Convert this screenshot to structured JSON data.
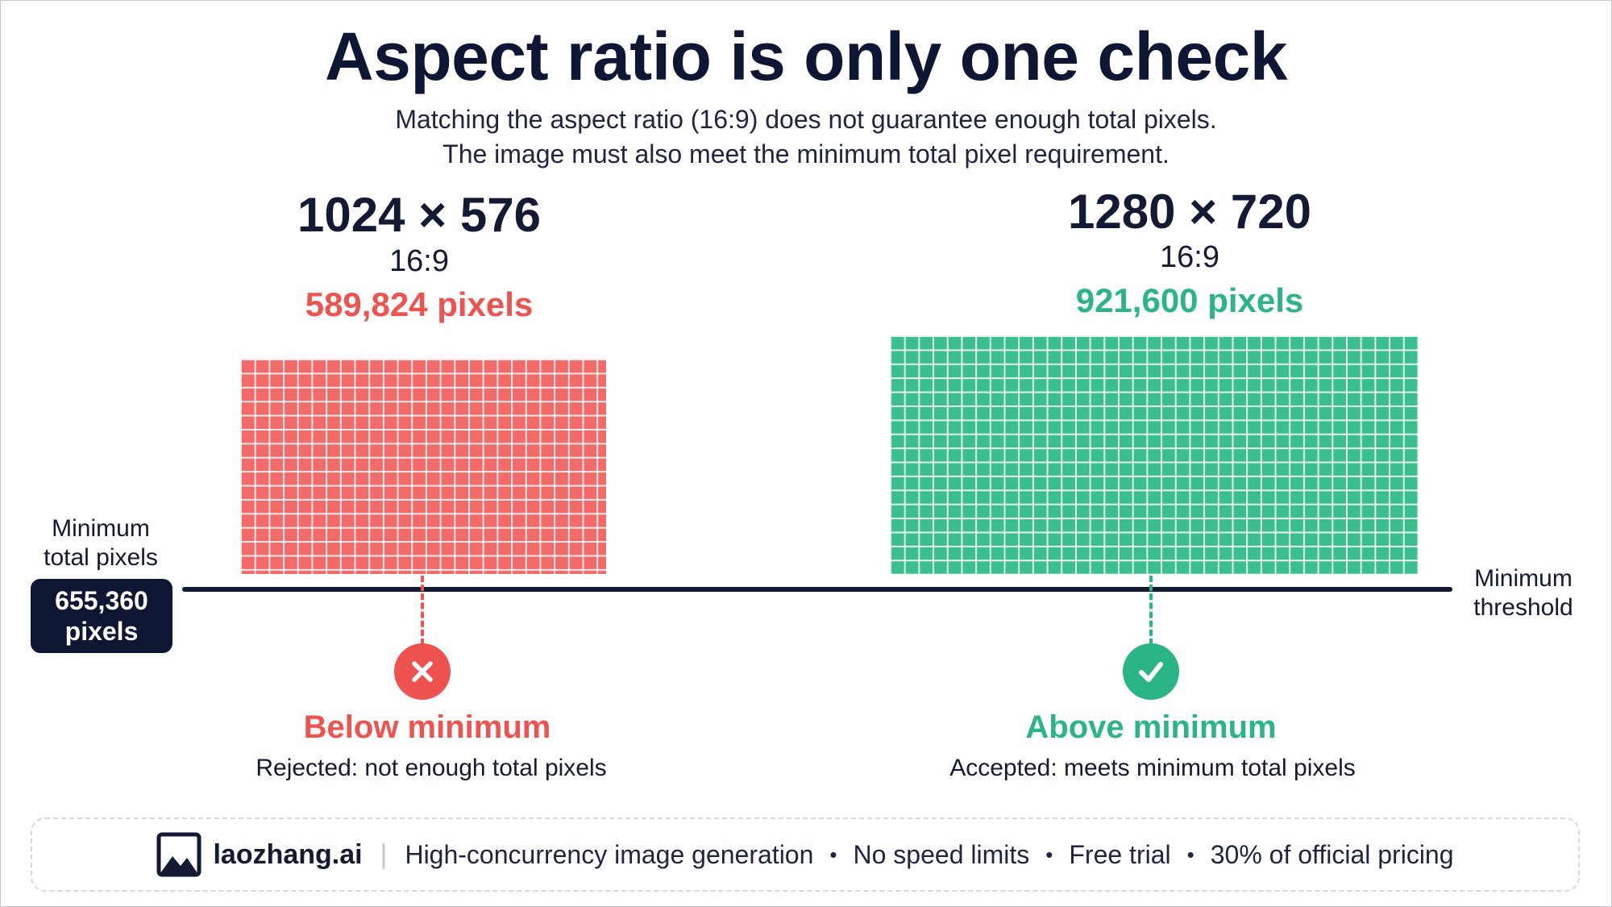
{
  "title": "Aspect ratio is only one check",
  "subtitle_lines": [
    "Matching the aspect ratio (16:9) does not guarantee enough total pixels.",
    "The image must also meet the minimum total pixel requirement."
  ],
  "left_panel": {
    "dimensions": "1024 × 576",
    "ratio": "16:9",
    "pixels": "589,824 pixels",
    "status": "Below minimum",
    "status_detail": "Rejected: not enough total pixels",
    "color": "#ef5350",
    "icon": "x-icon"
  },
  "right_panel": {
    "dimensions": "1280 × 720",
    "ratio": "16:9",
    "pixels": "921,600 pixels",
    "status": "Above minimum",
    "status_detail": "Accepted: meets minimum total pixels",
    "color": "#2bb584",
    "icon": "check-icon"
  },
  "minimum": {
    "label_lines": [
      "Minimum",
      "total pixels"
    ],
    "value_lines": [
      "655,360",
      "pixels"
    ]
  },
  "threshold_label_lines": [
    "Minimum",
    "threshold"
  ],
  "footer": {
    "icon": "image-icon",
    "brand": "laozhang.ai",
    "features": [
      "High-concurrency image generation",
      "No speed limits",
      "Free trial",
      "30% of official pricing"
    ]
  }
}
